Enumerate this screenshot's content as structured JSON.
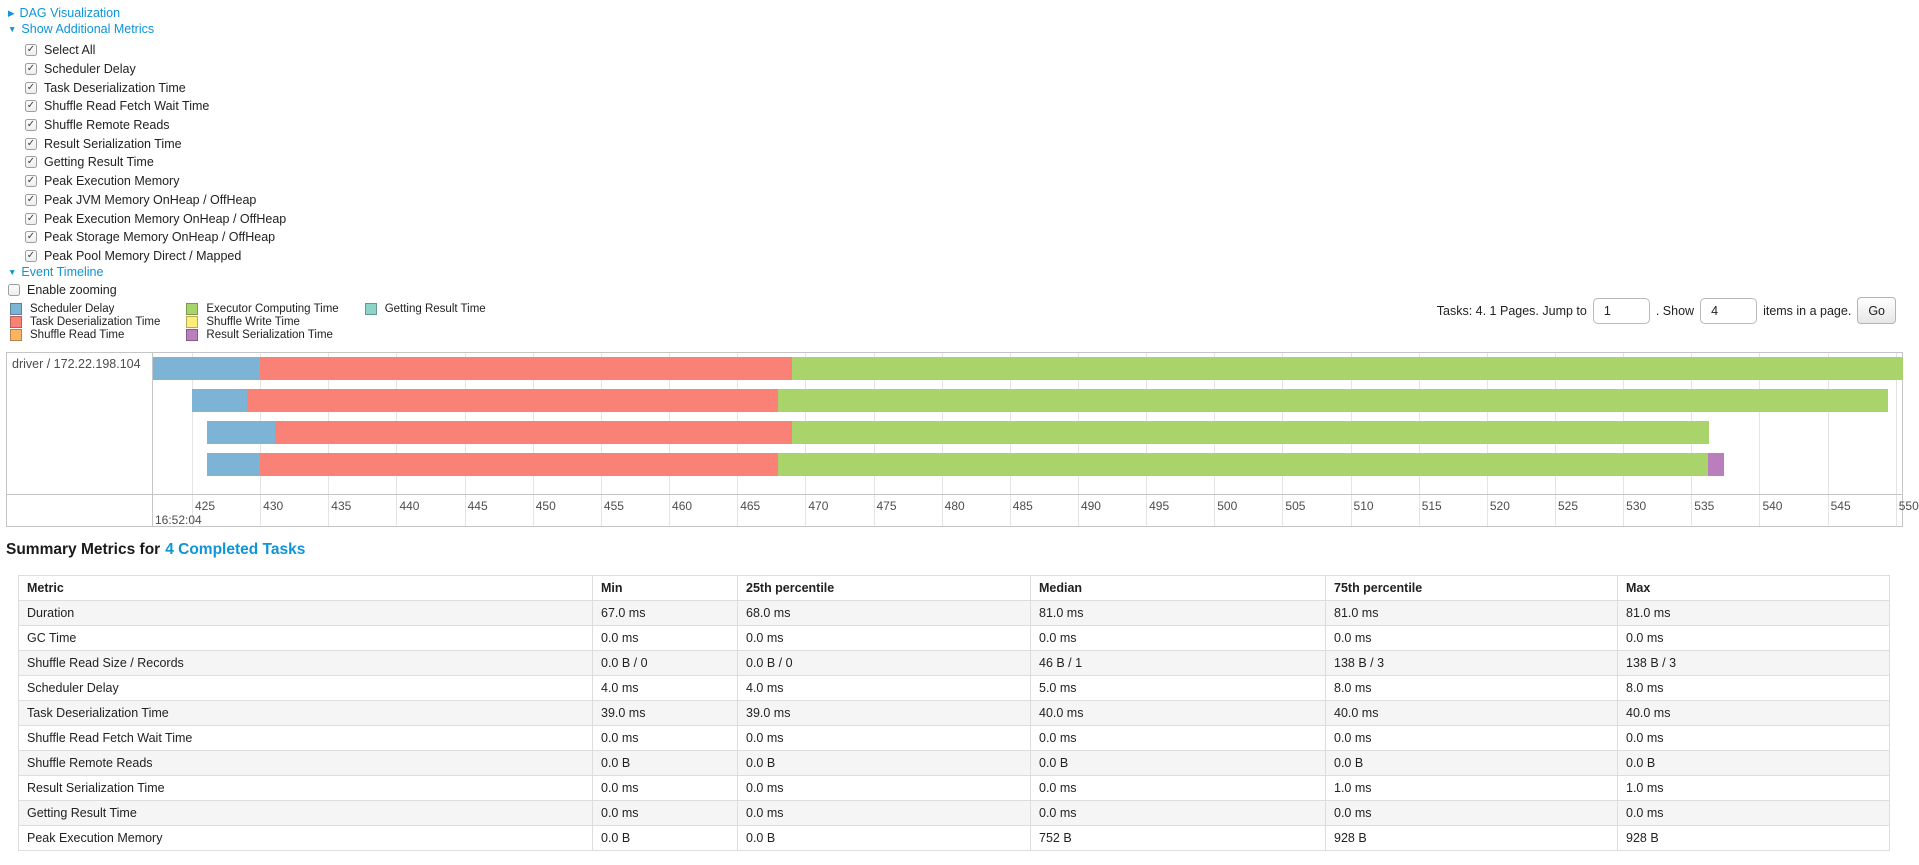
{
  "colors": {
    "link": "#0c95d8",
    "scheduler_delay": "#7DB3D5",
    "task_deserialization": "#F98175",
    "shuffle_read": "#FDB462",
    "executor_computing": "#A9D46B",
    "shuffle_write": "#FCEE79",
    "result_serialization": "#B97EBB",
    "getting_result": "#8DD3C7"
  },
  "controls": {
    "dag_label": "DAG Visualization",
    "dag_arrow": "▶",
    "metrics_label": "Show Additional Metrics",
    "metrics_arrow": "▼",
    "metric_checkboxes": [
      "Select All",
      "Scheduler Delay",
      "Task Deserialization Time",
      "Shuffle Read Fetch Wait Time",
      "Shuffle Remote Reads",
      "Result Serialization Time",
      "Getting Result Time",
      "Peak Execution Memory",
      "Peak JVM Memory OnHeap / OffHeap",
      "Peak Execution Memory OnHeap / OffHeap",
      "Peak Storage Memory OnHeap / OffHeap",
      "Peak Pool Memory Direct / Mapped"
    ],
    "event_timeline_label": "Event Timeline",
    "event_timeline_arrow": "▼",
    "enable_zooming_label": "Enable zooming",
    "enable_zooming_checked": false
  },
  "legend": [
    {
      "label": "Scheduler Delay",
      "color_key": "scheduler_delay"
    },
    {
      "label": "Task Deserialization Time",
      "color_key": "task_deserialization"
    },
    {
      "label": "Shuffle Read Time",
      "color_key": "shuffle_read"
    },
    {
      "label": "Executor Computing Time",
      "color_key": "executor_computing"
    },
    {
      "label": "Shuffle Write Time",
      "color_key": "shuffle_write"
    },
    {
      "label": "Result Serialization Time",
      "color_key": "result_serialization"
    },
    {
      "label": "Getting Result Time",
      "color_key": "getting_result"
    }
  ],
  "pagination": {
    "tasks_text": "Tasks: 4. 1 Pages. Jump to",
    "jump_value": "1",
    "between_text": ". Show",
    "show_value": "4",
    "after_text": "items in a page.",
    "go_label": "Go"
  },
  "chart_data": {
    "type": "timeline",
    "group": "driver / 172.22.198.104",
    "x_axis": {
      "major_label": "16:52:04",
      "tick_start": 425,
      "tick_end": 550,
      "tick_step": 5,
      "unit": "ms"
    },
    "tasks": [
      {
        "launch": 422.1,
        "scheduler_delay_end": 430.0,
        "deserialization_end": 469.0,
        "computing_end": 550.5,
        "serialization_end": null
      },
      {
        "launch": 425.0,
        "scheduler_delay_end": 429.0,
        "deserialization_end": 468.0,
        "computing_end": 549.4,
        "serialization_end": null
      },
      {
        "launch": 426.1,
        "scheduler_delay_end": 431.1,
        "deserialization_end": 469.0,
        "computing_end": 536.3,
        "serialization_end": null
      },
      {
        "launch": 426.1,
        "scheduler_delay_end": 430.0,
        "deserialization_end": 468.0,
        "computing_end": 536.2,
        "serialization_end": 537.4
      }
    ]
  },
  "summary": {
    "title_prefix": "Summary Metrics for",
    "title_link": "4 Completed Tasks",
    "headers": [
      "Metric",
      "Min",
      "25th percentile",
      "Median",
      "75th percentile",
      "Max"
    ],
    "rows": [
      [
        "Duration",
        "67.0 ms",
        "68.0 ms",
        "81.0 ms",
        "81.0 ms",
        "81.0 ms"
      ],
      [
        "GC Time",
        "0.0 ms",
        "0.0 ms",
        "0.0 ms",
        "0.0 ms",
        "0.0 ms"
      ],
      [
        "Shuffle Read Size / Records",
        "0.0 B / 0",
        "0.0 B / 0",
        "46 B / 1",
        "138 B / 3",
        "138 B / 3"
      ],
      [
        "Scheduler Delay",
        "4.0 ms",
        "4.0 ms",
        "5.0 ms",
        "8.0 ms",
        "8.0 ms"
      ],
      [
        "Task Deserialization Time",
        "39.0 ms",
        "39.0 ms",
        "40.0 ms",
        "40.0 ms",
        "40.0 ms"
      ],
      [
        "Shuffle Read Fetch Wait Time",
        "0.0 ms",
        "0.0 ms",
        "0.0 ms",
        "0.0 ms",
        "0.0 ms"
      ],
      [
        "Shuffle Remote Reads",
        "0.0 B",
        "0.0 B",
        "0.0 B",
        "0.0 B",
        "0.0 B"
      ],
      [
        "Result Serialization Time",
        "0.0 ms",
        "0.0 ms",
        "0.0 ms",
        "1.0 ms",
        "1.0 ms"
      ],
      [
        "Getting Result Time",
        "0.0 ms",
        "0.0 ms",
        "0.0 ms",
        "0.0 ms",
        "0.0 ms"
      ],
      [
        "Peak Execution Memory",
        "0.0 B",
        "0.0 B",
        "752 B",
        "928 B",
        "928 B"
      ]
    ]
  }
}
